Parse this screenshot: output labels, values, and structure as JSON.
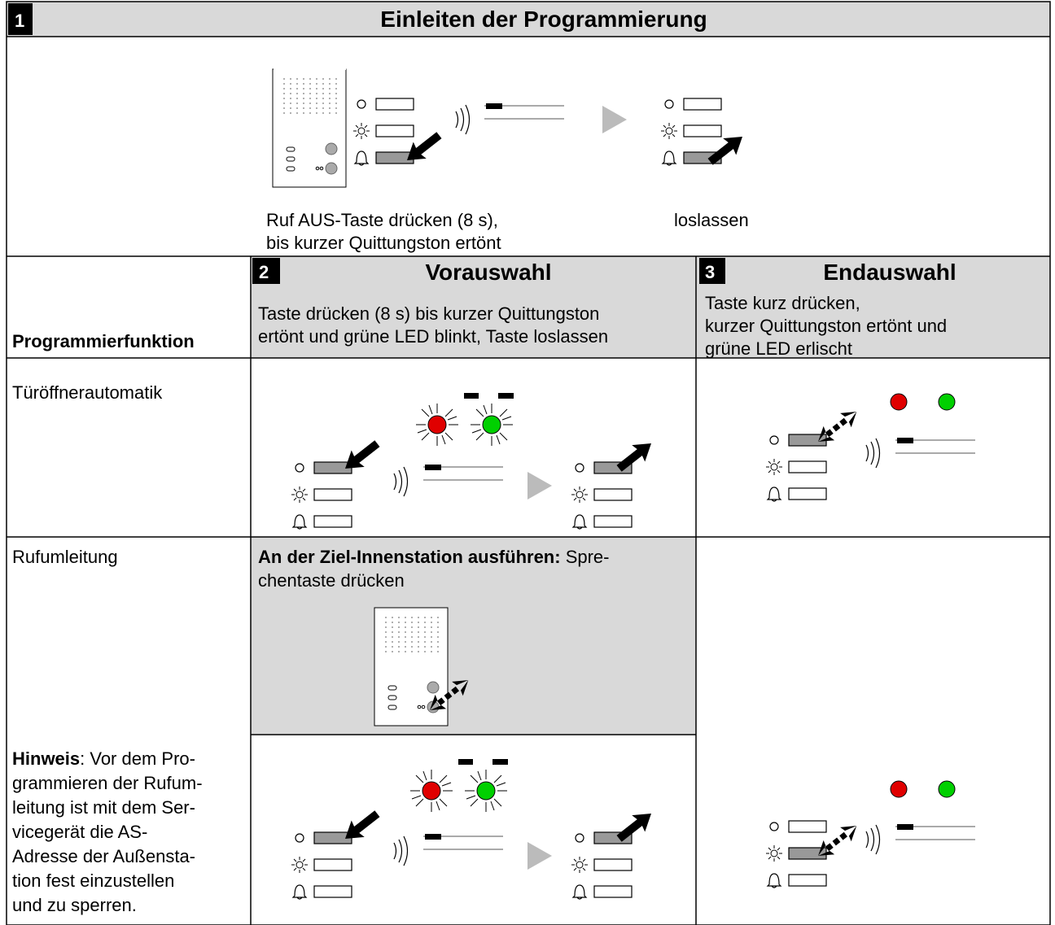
{
  "section1": {
    "number": "1",
    "title": "Einleiten der Programmierung",
    "step_press": [
      "Ruf AUS-Taste drücken (8 s),",
      "bis kurzer Quittungston ertönt"
    ],
    "step_release": "loslassen"
  },
  "section2": {
    "number": "2",
    "title": "Vorauswahl",
    "instruction": [
      "Taste drücken (8 s) bis kurzer Quittungston",
      "ertönt und grüne LED blinkt, Taste loslassen"
    ]
  },
  "section3": {
    "number": "3",
    "title": "Endauswahl",
    "instruction": [
      "Taste kurz drücken,",
      "kurzer Quittungston ertönt und",
      "grüne LED erlischt"
    ]
  },
  "table": {
    "column_header": "Programmierfunktion",
    "rows": [
      {
        "function": "Türöffnerautomatik"
      },
      {
        "function": "Rufumleitung",
        "target_label": "An der Ziel-Innenstation ausführen:",
        "target_instruction": [
          " Spre-",
          "chentaste drücken"
        ],
        "note_label": "Hinweis",
        "note": [
          ": Vor dem Pro-",
          "grammieren der Rufum-",
          "leitung ist mit dem Ser-",
          "vicegerät die AS-",
          "Adresse der Außensta-",
          "tion fest einzustellen",
          "und zu sperren."
        ]
      }
    ]
  }
}
